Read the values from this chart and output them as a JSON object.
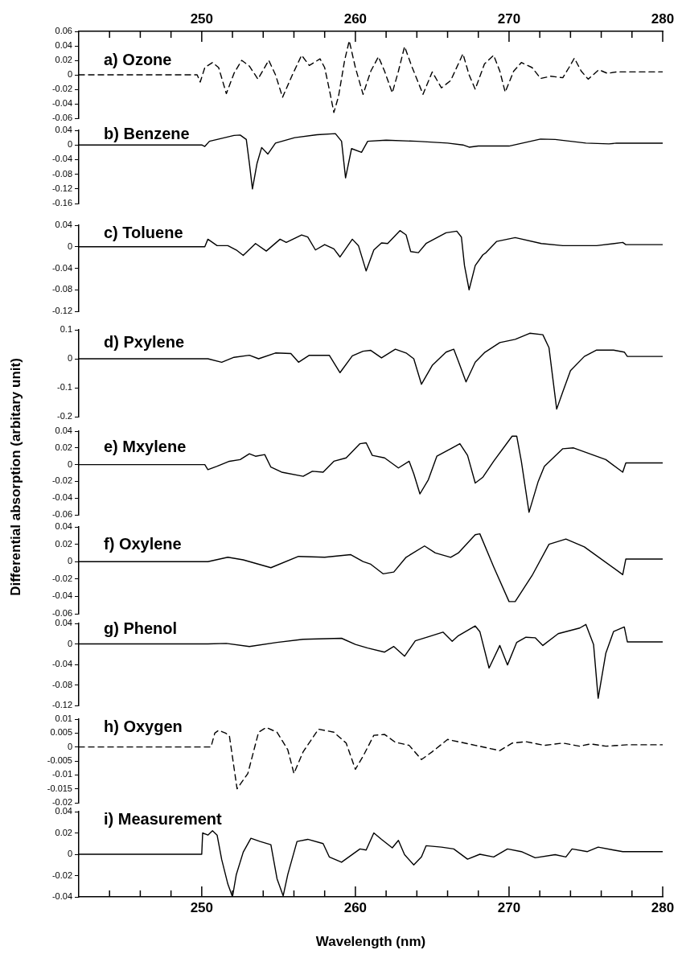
{
  "chart_data": [
    {
      "type": "line",
      "title": "a) Ozone",
      "xlim": [
        242,
        280
      ],
      "tick_labels": "y",
      "x2lim": [
        242,
        280
      ],
      "x2ticks": [
        {
          "value": 244,
          "label": null
        },
        {
          "value": 246,
          "label": null
        },
        {
          "value": 248,
          "label": null
        },
        250,
        {
          "value": 252,
          "label": null
        },
        {
          "value": 254,
          "label": null
        },
        {
          "value": 256,
          "label": null
        },
        {
          "value": 258,
          "label": null
        },
        260,
        {
          "value": 262,
          "label": null
        },
        {
          "value": 264,
          "label": null
        },
        {
          "value": 266,
          "label": null
        },
        {
          "value": 268,
          "label": null
        },
        270,
        {
          "value": 272,
          "label": null
        },
        {
          "value": 274,
          "label": null
        },
        {
          "value": 276,
          "label": null
        },
        {
          "value": 278,
          "label": null
        },
        280
      ],
      "ylim": [
        -0.06,
        0.06
      ],
      "yticks": [
        -0.06,
        -0.04,
        -0.02,
        0,
        0.02,
        0.04,
        0.06
      ],
      "line_style": "dashed",
      "color": "#000000",
      "x": [
        242,
        249.7,
        249.9,
        250.2,
        250.7,
        251.1,
        251.6,
        252.1,
        252.6,
        253.1,
        253.66,
        254.36,
        254.8,
        255.26,
        255.9,
        256.5,
        257.0,
        257.7,
        258.0,
        258.3,
        258.6,
        258.9,
        259.3,
        259.6,
        260.0,
        260.5,
        261.0,
        261.5,
        261.9,
        262.4,
        262.8,
        263.2,
        263.7,
        264.4,
        265.0,
        265.6,
        266.2,
        267.0,
        267.4,
        267.8,
        268.4,
        269.0,
        269.4,
        269.75,
        270.3,
        270.8,
        271.5,
        272.05,
        272.7,
        273.5,
        273.9,
        274.25,
        274.7,
        275.15,
        275.85,
        276.4,
        277.0,
        280
      ],
      "values": [
        0,
        0,
        -0.01,
        0.01,
        0.017,
        0.01,
        -0.026,
        0.002,
        0.02,
        0.012,
        -0.006,
        0.02,
        0.0,
        -0.031,
        0.0,
        0.027,
        0.013,
        0.022,
        0.01,
        -0.02,
        -0.052,
        -0.03,
        0.02,
        0.047,
        0.01,
        -0.027,
        0.005,
        0.025,
        0.005,
        -0.025,
        0.005,
        0.039,
        0.01,
        -0.027,
        0.004,
        -0.018,
        -0.008,
        0.029,
        0.0,
        -0.02,
        0.015,
        0.027,
        0.005,
        -0.024,
        0.005,
        0.017,
        0.01,
        -0.005,
        -0.002,
        -0.004,
        0.01,
        0.023,
        0.005,
        -0.006,
        0.007,
        0.002,
        0.004,
        0.004
      ]
    },
    {
      "type": "line",
      "title": "b) Benzene",
      "xlim": [
        242,
        280
      ],
      "tick_labels": "y",
      "ylim": [
        -0.16,
        0.04
      ],
      "yticks": [
        -0.16,
        -0.12,
        -0.08,
        -0.04,
        0,
        0.04
      ],
      "line_style": "solid",
      "color": "#000000",
      "x": [
        242,
        250.0,
        250.2,
        250.5,
        251.0,
        252.1,
        252.5,
        252.9,
        253.1,
        253.3,
        253.6,
        253.9,
        254.3,
        254.8,
        256.05,
        257.5,
        258.7,
        259.1,
        259.36,
        259.75,
        260.4,
        260.8,
        262,
        264,
        266,
        267,
        267.4,
        268,
        270,
        272.05,
        273,
        275,
        276.5,
        277,
        280
      ],
      "values": [
        0,
        0,
        -0.004,
        0.01,
        0.015,
        0.026,
        0.027,
        0.015,
        -0.05,
        -0.12,
        -0.05,
        -0.007,
        -0.025,
        0.005,
        0.02,
        0.028,
        0.031,
        0.01,
        -0.09,
        -0.01,
        -0.02,
        0.01,
        0.013,
        0.01,
        0.005,
        0,
        -0.006,
        -0.003,
        -0.003,
        0.016,
        0.015,
        0.005,
        0.003,
        0.005,
        0.005
      ]
    },
    {
      "type": "line",
      "title": "c) Toluene",
      "xlim": [
        242,
        280
      ],
      "tick_labels": "y",
      "ylim": [
        -0.12,
        0.04
      ],
      "yticks": [
        -0.12,
        -0.08,
        -0.04,
        0,
        0.04
      ],
      "line_style": "solid",
      "color": "#000000",
      "x": [
        242,
        250.2,
        250.4,
        251.0,
        251.7,
        252.25,
        252.7,
        253.5,
        254.2,
        255.1,
        255.5,
        256.5,
        256.9,
        257.4,
        258.0,
        258.6,
        259.0,
        259.8,
        260.2,
        260.7,
        261.2,
        261.7,
        262.1,
        262.9,
        263.3,
        263.6,
        264.1,
        264.6,
        265.9,
        266.6,
        266.9,
        267.1,
        267.4,
        267.8,
        268.3,
        268.5,
        269.2,
        270.4,
        272.1,
        273.5,
        275.7,
        277.4,
        277.6,
        280
      ],
      "values": [
        0,
        0,
        0.014,
        0.002,
        0.002,
        -0.006,
        -0.016,
        0.006,
        -0.008,
        0.014,
        0.008,
        0.022,
        0.018,
        -0.006,
        0.004,
        -0.004,
        -0.019,
        0.014,
        0.002,
        -0.045,
        -0.006,
        0.007,
        0.006,
        0.03,
        0.022,
        -0.009,
        -0.011,
        0.006,
        0.026,
        0.029,
        0.018,
        -0.035,
        -0.08,
        -0.035,
        -0.015,
        -0.011,
        0.01,
        0.017,
        0.006,
        0.002,
        0.002,
        0.008,
        0.004,
        0.004
      ]
    },
    {
      "type": "line",
      "title": "d) Pxylene",
      "xlim": [
        242,
        280
      ],
      "tick_labels": "y",
      "ylim": [
        -0.2,
        0.1
      ],
      "yticks": [
        -0.2,
        -0.1,
        0,
        0.1
      ],
      "line_style": "solid",
      "color": "#000000",
      "x": [
        242,
        250.4,
        251.3,
        252.1,
        253.1,
        253.7,
        254.8,
        255.8,
        256.3,
        257.0,
        258.3,
        259.0,
        259.8,
        260.5,
        261.0,
        261.7,
        262.6,
        263.3,
        263.8,
        264.3,
        265.0,
        265.9,
        266.4,
        266.7,
        267.2,
        267.8,
        268.4,
        269.4,
        270.4,
        271.35,
        272.2,
        272.6,
        273.1,
        273.5,
        274.0,
        274.9,
        275.7,
        276.8,
        277.5,
        277.7,
        280
      ],
      "values": [
        0,
        0,
        -0.012,
        0.005,
        0.012,
        0,
        0.02,
        0.018,
        -0.012,
        0.012,
        0.012,
        -0.048,
        0.01,
        0.026,
        0.029,
        0.003,
        0.033,
        0.02,
        0,
        -0.088,
        -0.023,
        0.023,
        0.033,
        -0.008,
        -0.08,
        -0.012,
        0.021,
        0.056,
        0.067,
        0.088,
        0.083,
        0.038,
        -0.174,
        -0.114,
        -0.041,
        0.008,
        0.03,
        0.03,
        0.023,
        0.008,
        0.008
      ]
    },
    {
      "type": "line",
      "title": "e) Mxylene",
      "ylabel": "Differential absorption (arbitary unit)",
      "xlim": [
        242,
        280
      ],
      "tick_labels": "y",
      "ylim": [
        -0.06,
        0.04
      ],
      "yticks": [
        -0.06,
        -0.04,
        -0.02,
        0,
        0.02,
        0.04
      ],
      "line_style": "solid",
      "color": "#000000",
      "x": [
        242,
        250.2,
        250.4,
        251.0,
        251.8,
        252.5,
        253.1,
        253.5,
        254.1,
        254.5,
        255.2,
        256.6,
        257.2,
        257.9,
        258.6,
        259.4,
        260.3,
        260.7,
        261.1,
        261.9,
        262.8,
        263.5,
        263.8,
        264.2,
        264.75,
        265.3,
        266.3,
        266.8,
        267.3,
        267.8,
        268.3,
        269.0,
        270.2,
        270.5,
        270.8,
        271.3,
        271.9,
        272.3,
        273.5,
        274.2,
        276.3,
        277.4,
        277.6,
        280
      ],
      "values": [
        0,
        0,
        -0.006,
        -0.002,
        0.004,
        0.006,
        0.013,
        0.01,
        0.012,
        -0.003,
        -0.009,
        -0.014,
        -0.008,
        -0.009,
        0.004,
        0.008,
        0.025,
        0.026,
        0.011,
        0.008,
        -0.004,
        0.004,
        -0.011,
        -0.035,
        -0.018,
        0.01,
        0.02,
        0.025,
        0.011,
        -0.022,
        -0.015,
        0.004,
        0.034,
        0.034,
        0.004,
        -0.057,
        -0.02,
        -0.002,
        0.019,
        0.02,
        0.006,
        -0.009,
        0.002,
        0.002
      ]
    },
    {
      "type": "line",
      "title": "f) Oxylene",
      "xlim": [
        242,
        280
      ],
      "tick_labels": "y",
      "ylim": [
        -0.06,
        0.04
      ],
      "yticks": [
        -0.06,
        -0.04,
        -0.02,
        0,
        0.02,
        0.04
      ],
      "line_style": "solid",
      "color": "#000000",
      "x": [
        242,
        250.4,
        251.7,
        252.7,
        254.5,
        256.3,
        258.0,
        259.7,
        260.5,
        261.0,
        261.8,
        262.5,
        263.3,
        264.5,
        265.2,
        266.2,
        266.7,
        267.8,
        268.1,
        269.0,
        270.0,
        270.4,
        271.5,
        272.6,
        273.7,
        274.9,
        277.4,
        277.6,
        280
      ],
      "values": [
        0,
        0,
        0.005,
        0.002,
        -0.007,
        0.006,
        0.005,
        0.008,
        0.0,
        -0.003,
        -0.014,
        -0.012,
        0.005,
        0.018,
        0.01,
        0.005,
        0.01,
        0.031,
        0.032,
        -0.006,
        -0.046,
        -0.046,
        -0.016,
        0.02,
        0.026,
        0.017,
        -0.015,
        0.003,
        0.003
      ]
    },
    {
      "type": "line",
      "title": "g) Phenol",
      "xlim": [
        242,
        280
      ],
      "tick_labels": "y",
      "ylim": [
        -0.12,
        0.04
      ],
      "yticks": [
        -0.12,
        -0.08,
        -0.04,
        0,
        0.04
      ],
      "line_style": "solid",
      "color": "#000000",
      "x": [
        242,
        250.4,
        251.6,
        253.1,
        254.9,
        256.6,
        259.1,
        260.0,
        260.8,
        261.9,
        262.5,
        263.2,
        263.9,
        264.75,
        265.7,
        266.3,
        266.7,
        267.8,
        268.1,
        268.7,
        269.4,
        269.9,
        270.5,
        271.1,
        271.7,
        272.2,
        273.2,
        274.6,
        275.0,
        275.5,
        275.8,
        276.3,
        276.8,
        277.5,
        277.7,
        280
      ],
      "values": [
        0,
        0,
        0.001,
        -0.005,
        0.003,
        0.009,
        0.011,
        -0.001,
        -0.008,
        -0.016,
        -0.005,
        -0.024,
        0.006,
        0.014,
        0.023,
        0.005,
        0.016,
        0.035,
        0.024,
        -0.047,
        -0.003,
        -0.041,
        0.003,
        0.013,
        0.012,
        -0.003,
        0.02,
        0.031,
        0.038,
        -0.001,
        -0.106,
        -0.018,
        0.024,
        0.033,
        0.004,
        0.004
      ]
    },
    {
      "type": "line",
      "title": "h) Oxygen",
      "xlim": [
        242,
        280
      ],
      "tick_labels": "y",
      "ylim": [
        -0.02,
        0.01
      ],
      "yticks": [
        -0.02,
        -0.015,
        -0.01,
        -0.005,
        0,
        0.005,
        0.01
      ],
      "line_style": "dashed",
      "color": "#000000",
      "x": [
        242,
        250.6,
        250.85,
        251.1,
        251.55,
        251.8,
        252.3,
        253.0,
        253.7,
        254.2,
        254.9,
        255.6,
        256.0,
        256.6,
        257.6,
        258.6,
        259.4,
        260.0,
        260.5,
        261.2,
        261.9,
        262.6,
        263.5,
        264.3,
        265.0,
        266.0,
        267.8,
        269.4,
        270.2,
        271.1,
        272.3,
        273.5,
        274.6,
        275.3,
        276.3,
        277.7,
        280
      ],
      "values": [
        0,
        0,
        0.005,
        0.006,
        0.005,
        0.004,
        -0.015,
        -0.0095,
        0.0053,
        0.007,
        0.0053,
        -0.001,
        -0.0095,
        -0.0017,
        0.0064,
        0.0053,
        0.0014,
        -0.008,
        -0.0033,
        0.0042,
        0.0045,
        0.0017,
        0.0006,
        -0.0045,
        -0.0017,
        0.0027,
        0.0006,
        -0.0013,
        0.0014,
        0.0019,
        0.0006,
        0.0014,
        0.0003,
        0.0011,
        0.0003,
        0.0008,
        0.0008
      ]
    },
    {
      "type": "line",
      "title": "i) Measurement",
      "xlabel": "Wavelength (nm)",
      "xlim": [
        242,
        280
      ],
      "xticks": [
        {
          "value": 244,
          "label": null
        },
        {
          "value": 246,
          "label": null
        },
        {
          "value": 248,
          "label": null
        },
        250,
        {
          "value": 252,
          "label": null
        },
        {
          "value": 254,
          "label": null
        },
        {
          "value": 256,
          "label": null
        },
        {
          "value": 258,
          "label": null
        },
        260,
        {
          "value": 262,
          "label": null
        },
        {
          "value": 264,
          "label": null
        },
        {
          "value": 266,
          "label": null
        },
        {
          "value": 268,
          "label": null
        },
        270,
        {
          "value": 272,
          "label": null
        },
        {
          "value": 274,
          "label": null
        },
        {
          "value": 276,
          "label": null
        },
        {
          "value": 278,
          "label": null
        },
        280
      ],
      "ylim": [
        -0.04,
        0.04
      ],
      "yticks": [
        -0.04,
        -0.02,
        0,
        0.02,
        0.04
      ],
      "line_style": "solid",
      "color": "#000000",
      "x": [
        242,
        250.0,
        250.06,
        250.4,
        250.7,
        251.0,
        251.3,
        251.7,
        252.0,
        252.25,
        252.7,
        253.2,
        253.8,
        254.5,
        254.9,
        255.3,
        255.6,
        256.2,
        256.9,
        257.9,
        258.3,
        259.1,
        260.3,
        260.7,
        261.2,
        261.7,
        262.4,
        262.8,
        263.2,
        263.8,
        264.3,
        264.6,
        265.6,
        266.4,
        267.3,
        268.1,
        269.0,
        269.9,
        270.8,
        271.7,
        273.0,
        273.7,
        274.1,
        275.1,
        275.8,
        276.8,
        277.4,
        280
      ],
      "values": [
        0,
        0,
        0.02,
        0.018,
        0.022,
        0.018,
        -0.005,
        -0.028,
        -0.04,
        -0.019,
        0.002,
        0.015,
        0.012,
        0.009,
        -0.023,
        -0.039,
        -0.019,
        0.012,
        0.014,
        0.01,
        -0.0025,
        -0.0075,
        0.005,
        0.004,
        0.02,
        0.014,
        0.006,
        0.013,
        -0.0004,
        -0.01,
        -0.0025,
        0.008,
        0.0067,
        0.005,
        -0.0046,
        0,
        -0.0025,
        0.005,
        0.0025,
        -0.0033,
        -0.0004,
        -0.0025,
        0.005,
        0.0025,
        0.0067,
        0.004,
        0.0025,
        0.0025
      ]
    }
  ]
}
